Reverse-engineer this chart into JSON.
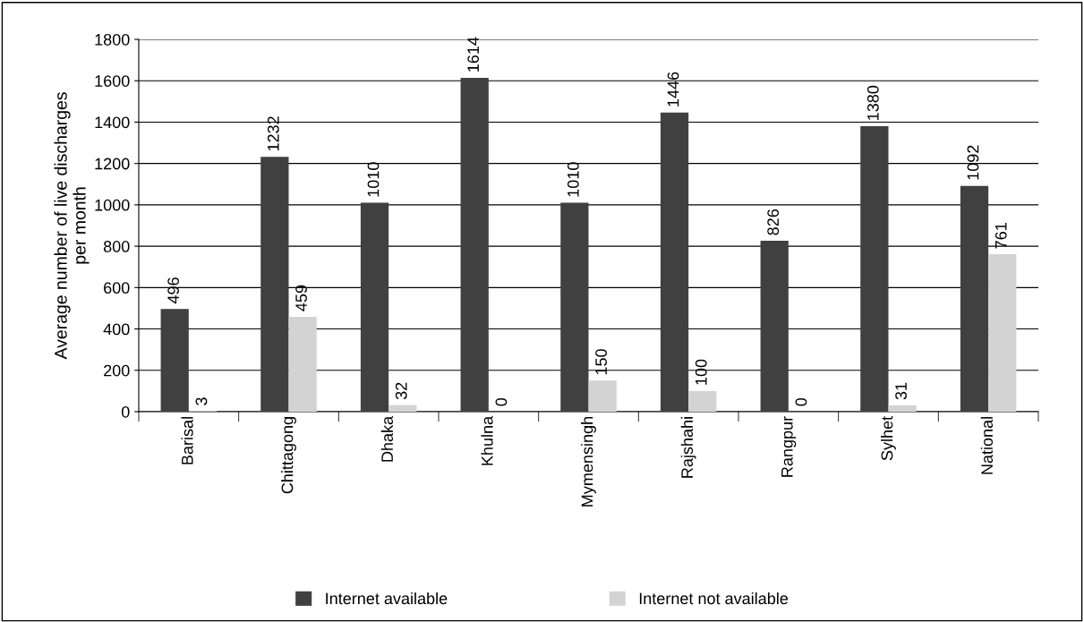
{
  "chart_data": {
    "type": "bar",
    "ylabel": "Average number of live discharges\nper month",
    "categories": [
      "Barisal",
      "Chittagong",
      "Dhaka",
      "Khulna",
      "Mymensingh",
      "Rajshahi",
      "Rangpur",
      "Sylhet",
      "National"
    ],
    "series": [
      {
        "name": "Internet available",
        "color": "#404040",
        "values": [
          496,
          1232,
          1010,
          1614,
          1010,
          1446,
          826,
          1380,
          1092
        ]
      },
      {
        "name": "Internet not available",
        "color": "#d3d3d3",
        "values": [
          3,
          459,
          32,
          0,
          150,
          100,
          0,
          31,
          761
        ]
      }
    ],
    "ylim": [
      0,
      1800
    ],
    "yticks": [
      0,
      200,
      400,
      600,
      800,
      1000,
      1200,
      1400,
      1600,
      1800
    ],
    "grid": "y",
    "legend": "bottom",
    "data_labels": true
  }
}
